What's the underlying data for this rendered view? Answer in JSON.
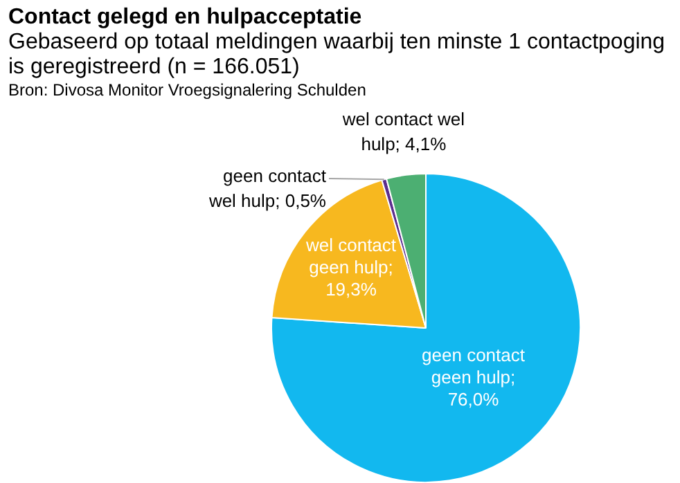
{
  "chart_data": {
    "type": "pie",
    "title": "Contact gelegd en hulpacceptatie",
    "subtitle": "Gebaseerd op totaal meldingen waarbij ten minste 1 contactpoging is geregistreerd (n = 166.051)",
    "annotations": [
      "Bron: Divosa Monitor Vroegsignalering Schulden"
    ],
    "categories": [
      "geen contact geen hulp",
      "wel contact geen hulp",
      "geen contact wel hulp",
      "wel contact wel hulp"
    ],
    "values": [
      76.0,
      19.3,
      0.5,
      4.1
    ],
    "value_labels": [
      "; 76,0%",
      "; 19,3%",
      "; 0,5%",
      "; 4,1%"
    ],
    "colors": [
      "#12b8ef",
      "#f7b81f",
      "#5b2d8e",
      "#4caf72"
    ],
    "legend": false
  }
}
